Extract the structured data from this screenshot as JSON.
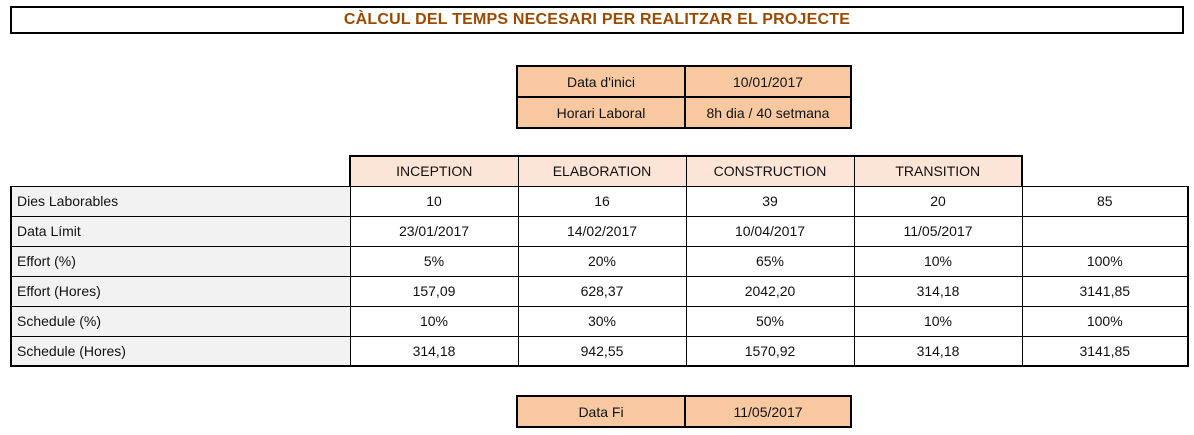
{
  "title": "CÀLCUL DEL TEMPS NECESARI PER REALITZAR EL PROJECTE",
  "info": {
    "start_label": "Data d'inici",
    "start_value": "10/01/2017",
    "hours_label": "Horari Laboral",
    "hours_value": "8h dia / 40 setmana"
  },
  "table": {
    "phases": [
      "INCEPTION",
      "ELABORATION",
      "CONSTRUCTION",
      "TRANSITION"
    ],
    "rows": [
      {
        "label": "Dies Laborables",
        "values": [
          "10",
          "16",
          "39",
          "20"
        ],
        "total": "85"
      },
      {
        "label": "Data Límit",
        "values": [
          "23/01/2017",
          "14/02/2017",
          "10/04/2017",
          "11/05/2017"
        ],
        "total": ""
      },
      {
        "label": "Effort (%)",
        "values": [
          "5%",
          "20%",
          "65%",
          "10%"
        ],
        "total": "100%"
      },
      {
        "label": "Effort (Hores)",
        "values": [
          "157,09",
          "628,37",
          "2042,20",
          "314,18"
        ],
        "total": "3141,85"
      },
      {
        "label": "Schedule (%)",
        "values": [
          "10%",
          "30%",
          "50%",
          "10%"
        ],
        "total": "100%"
      },
      {
        "label": "Schedule (Hores)",
        "values": [
          "314,18",
          "942,55",
          "1570,92",
          "314,18"
        ],
        "total": "3141,85"
      }
    ]
  },
  "end": {
    "label": "Data Fi",
    "value": "11/05/2017"
  }
}
